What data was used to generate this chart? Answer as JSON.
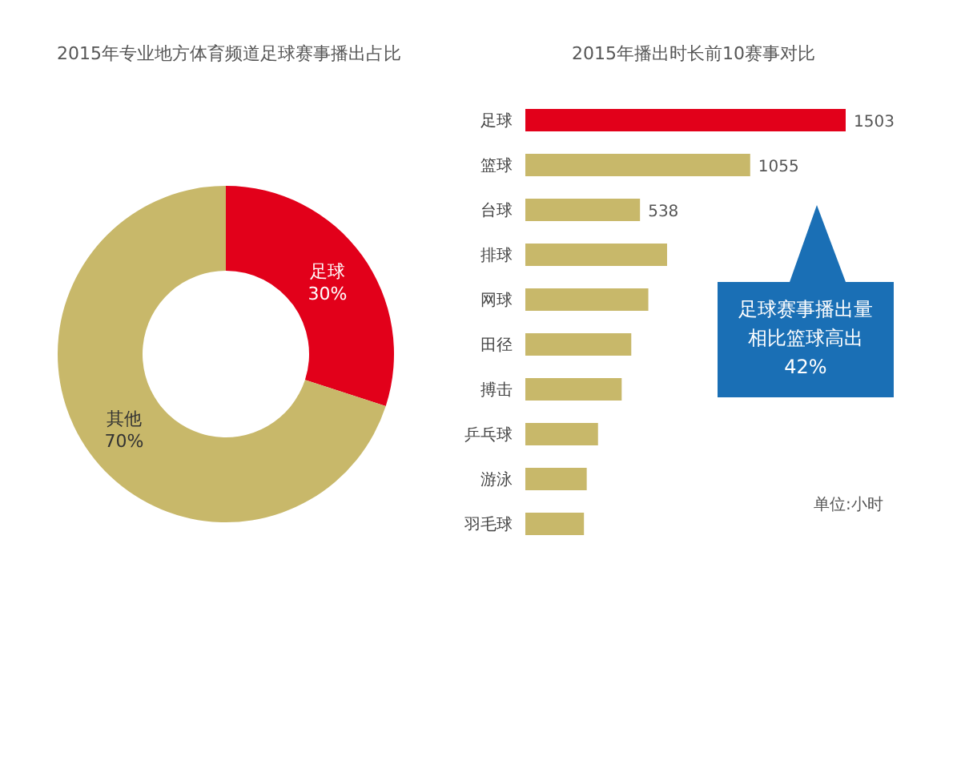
{
  "chart_data": [
    {
      "type": "donut",
      "title": "2015年专业地方体育频道足球赛事播出占比",
      "categories": [
        "足球",
        "其他"
      ],
      "values": [
        30,
        70
      ],
      "colors": [
        "#e2001a",
        "#c8b86a"
      ],
      "value_labels": [
        "30%",
        "70%"
      ]
    },
    {
      "type": "bar",
      "orientation": "horizontal",
      "title": "2015年播出时长前10赛事对比",
      "categories": [
        "足球",
        "篮球",
        "台球",
        "排球",
        "网球",
        "田径",
        "搏击",
        "乒乓球",
        "游泳",
        "羽毛球"
      ],
      "values": [
        1503,
        1055,
        538,
        665,
        577,
        497,
        452,
        341,
        288,
        275
      ],
      "colors": [
        "#e2001a",
        "#c8b86a",
        "#c8b86a",
        "#c8b86a",
        "#c8b86a",
        "#c8b86a",
        "#c8b86a",
        "#c8b86a",
        "#c8b86a",
        "#c8b86a"
      ],
      "value_labels": [
        "1503",
        "1055",
        "538",
        null,
        null,
        null,
        null,
        null,
        null,
        null
      ],
      "annotations": [
        "足球赛事播出量相比篮球高出42%",
        "单位:小时"
      ]
    }
  ]
}
